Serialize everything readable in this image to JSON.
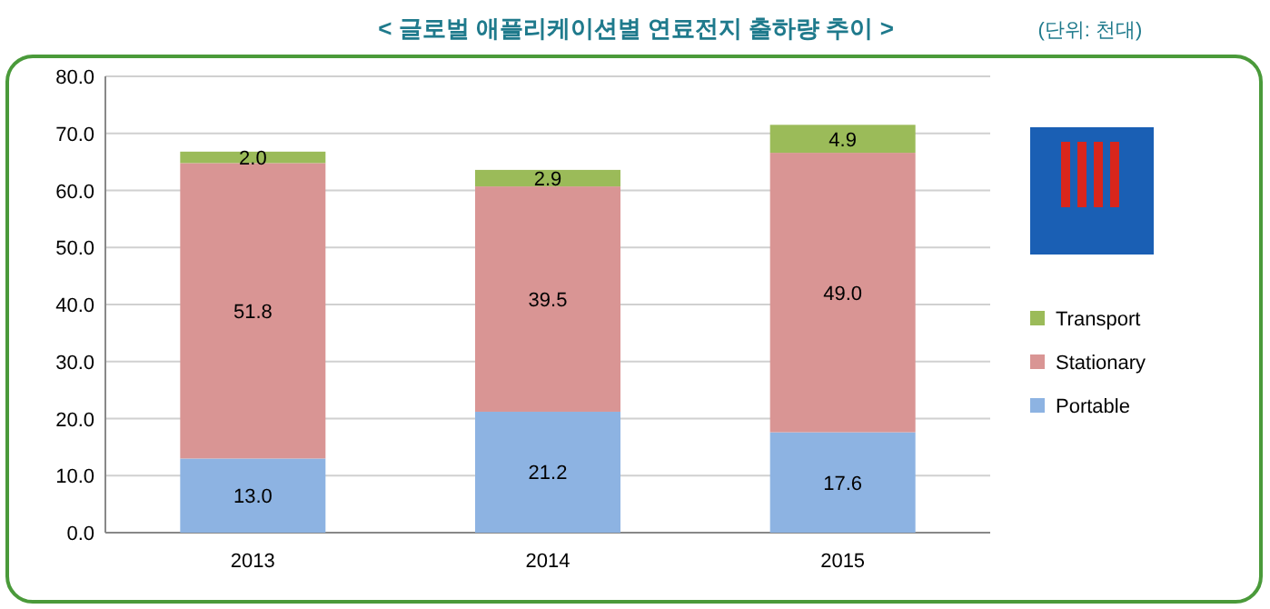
{
  "chart_data": {
    "type": "bar",
    "title": "< 글로벌 애플리케이션별 연료전지 출하량 추이 >",
    "subtitle": "(단위: 천대)",
    "categories": [
      "2013",
      "2014",
      "2015"
    ],
    "stacked": true,
    "series": [
      {
        "name": "Portable",
        "color": "#8db3e2",
        "values": [
          13.0,
          21.2,
          17.6
        ],
        "value_labels": [
          "13.0",
          "21.2",
          "17.6"
        ]
      },
      {
        "name": "Stationary",
        "color": "#d99594",
        "values": [
          51.8,
          39.5,
          49.0
        ],
        "value_labels": [
          "51.8",
          "39.5",
          "49.0"
        ]
      },
      {
        "name": "Transport",
        "color": "#9bbb59",
        "values": [
          2.0,
          2.9,
          4.9
        ],
        "value_labels": [
          "2.0",
          "2.9",
          "4.9"
        ]
      }
    ],
    "ylim": [
      0,
      80
    ],
    "yticks": [
      {
        "value": 0,
        "label": "0.0"
      },
      {
        "value": 10,
        "label": "10.0"
      },
      {
        "value": 20,
        "label": "20.0"
      },
      {
        "value": 30,
        "label": "30.0"
      },
      {
        "value": 40,
        "label": "40.0"
      },
      {
        "value": 50,
        "label": "50.0"
      },
      {
        "value": 60,
        "label": "60.0"
      },
      {
        "value": 70,
        "label": "70.0"
      },
      {
        "value": 80,
        "label": "80.0"
      }
    ],
    "grid": "y",
    "legend": "right"
  }
}
